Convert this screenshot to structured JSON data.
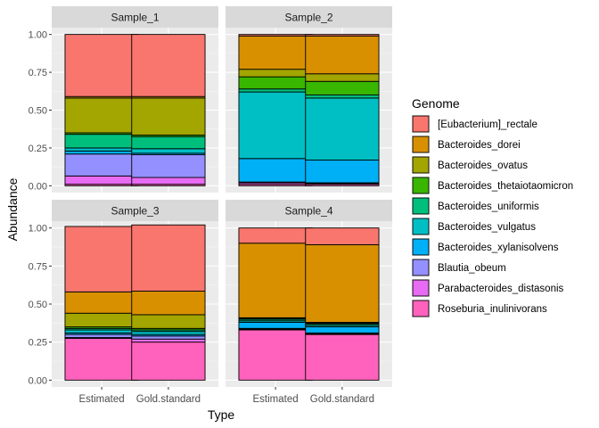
{
  "chart_data": {
    "type": "bar",
    "stacked": true,
    "facets": [
      "Sample_1",
      "Sample_2",
      "Sample_3",
      "Sample_4"
    ],
    "categories": [
      "Estimated",
      "Gold.standard"
    ],
    "xlabel": "Type",
    "ylabel": "Abundance",
    "ylim": [
      0,
      1
    ],
    "yticks": [
      "0.00",
      "0.25",
      "0.50",
      "0.75",
      "1.00"
    ],
    "grid": true,
    "legend": {
      "title": "Genome",
      "position": "right",
      "entries": [
        {
          "name": "[Eubacterium]_rectale",
          "color": "#F8766D"
        },
        {
          "name": "Bacteroides_dorei",
          "color": "#D89000"
        },
        {
          "name": "Bacteroides_ovatus",
          "color": "#A3A500"
        },
        {
          "name": "Bacteroides_thetaiotaomicron",
          "color": "#39B600"
        },
        {
          "name": "Bacteroides_uniformis",
          "color": "#00BF7D"
        },
        {
          "name": "Bacteroides_vulgatus",
          "color": "#00BFC4"
        },
        {
          "name": "Bacteroides_xylanisolvens",
          "color": "#00B0F6"
        },
        {
          "name": "Blautia_obeum",
          "color": "#9590FF"
        },
        {
          "name": "Parabacteroides_distasonis",
          "color": "#E76BF3"
        },
        {
          "name": "Roseburia_inulinivorans",
          "color": "#FF62BC"
        }
      ]
    },
    "values": {
      "Sample_1": {
        "Estimated": [
          0.41,
          0.01,
          0.23,
          0.01,
          0.09,
          0.02,
          0.02,
          0.145,
          0.055,
          0.01
        ],
        "Gold.standard": [
          0.41,
          0.01,
          0.245,
          0.01,
          0.08,
          0.03,
          0.01,
          0.15,
          0.045,
          0.01
        ]
      },
      "Sample_2": {
        "Estimated": [
          0.01,
          0.22,
          0.05,
          0.08,
          0.02,
          0.44,
          0.155,
          0.005,
          0.01,
          0.01
        ],
        "Gold.standard": [
          0.01,
          0.25,
          0.05,
          0.09,
          0.02,
          0.41,
          0.15,
          0.005,
          0.005,
          0.01
        ]
      },
      "Sample_3": {
        "Estimated": [
          0.43,
          0.14,
          0.09,
          0.01,
          0.01,
          0.02,
          0.01,
          0.02,
          0.005,
          0.275
        ],
        "Gold.standard": [
          0.435,
          0.155,
          0.09,
          0.01,
          0.01,
          0.02,
          0.01,
          0.02,
          0.02,
          0.25
        ]
      },
      "Sample_4": {
        "Estimated": [
          0.1,
          0.49,
          0.005,
          0.005,
          0.01,
          0.01,
          0.04,
          0.005,
          0.005,
          0.33
        ],
        "Gold.standard": [
          0.11,
          0.51,
          0.005,
          0.005,
          0.01,
          0.01,
          0.04,
          0.005,
          0.005,
          0.3
        ]
      }
    }
  }
}
